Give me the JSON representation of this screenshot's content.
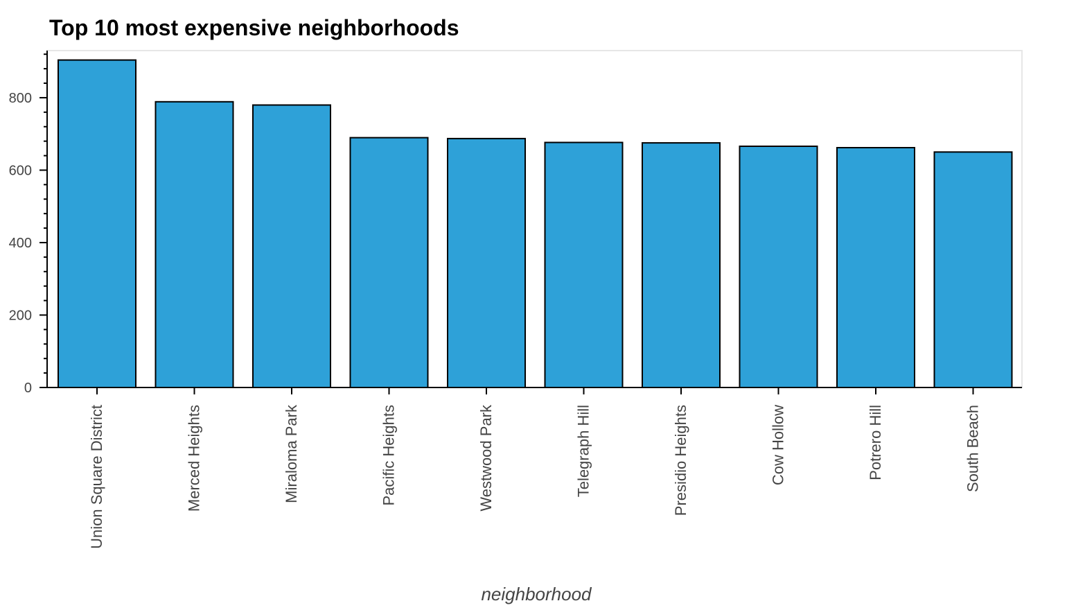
{
  "chart_data": {
    "type": "bar",
    "title": "Top 10 most expensive neighborhoods",
    "xlabel": "neighborhood",
    "ylabel": "",
    "categories": [
      "Union Square District",
      "Merced Heights",
      "Miraloma Park",
      "Pacific Heights",
      "Westwood Park",
      "Telegraph Hill",
      "Presidio Heights",
      "Cow Hollow",
      "Potrero Hill",
      "South Beach"
    ],
    "values": [
      903.99,
      788.85,
      779.81,
      689.56,
      687.09,
      676.51,
      675.35,
      665.96,
      662.01,
      650.12
    ],
    "ylim": [
      0,
      930
    ],
    "yticks": [
      0,
      200,
      400,
      600,
      800
    ],
    "grid": false,
    "legend": "none",
    "bar_color": "#2ea1d8",
    "bar_edge_color": "#000000"
  }
}
